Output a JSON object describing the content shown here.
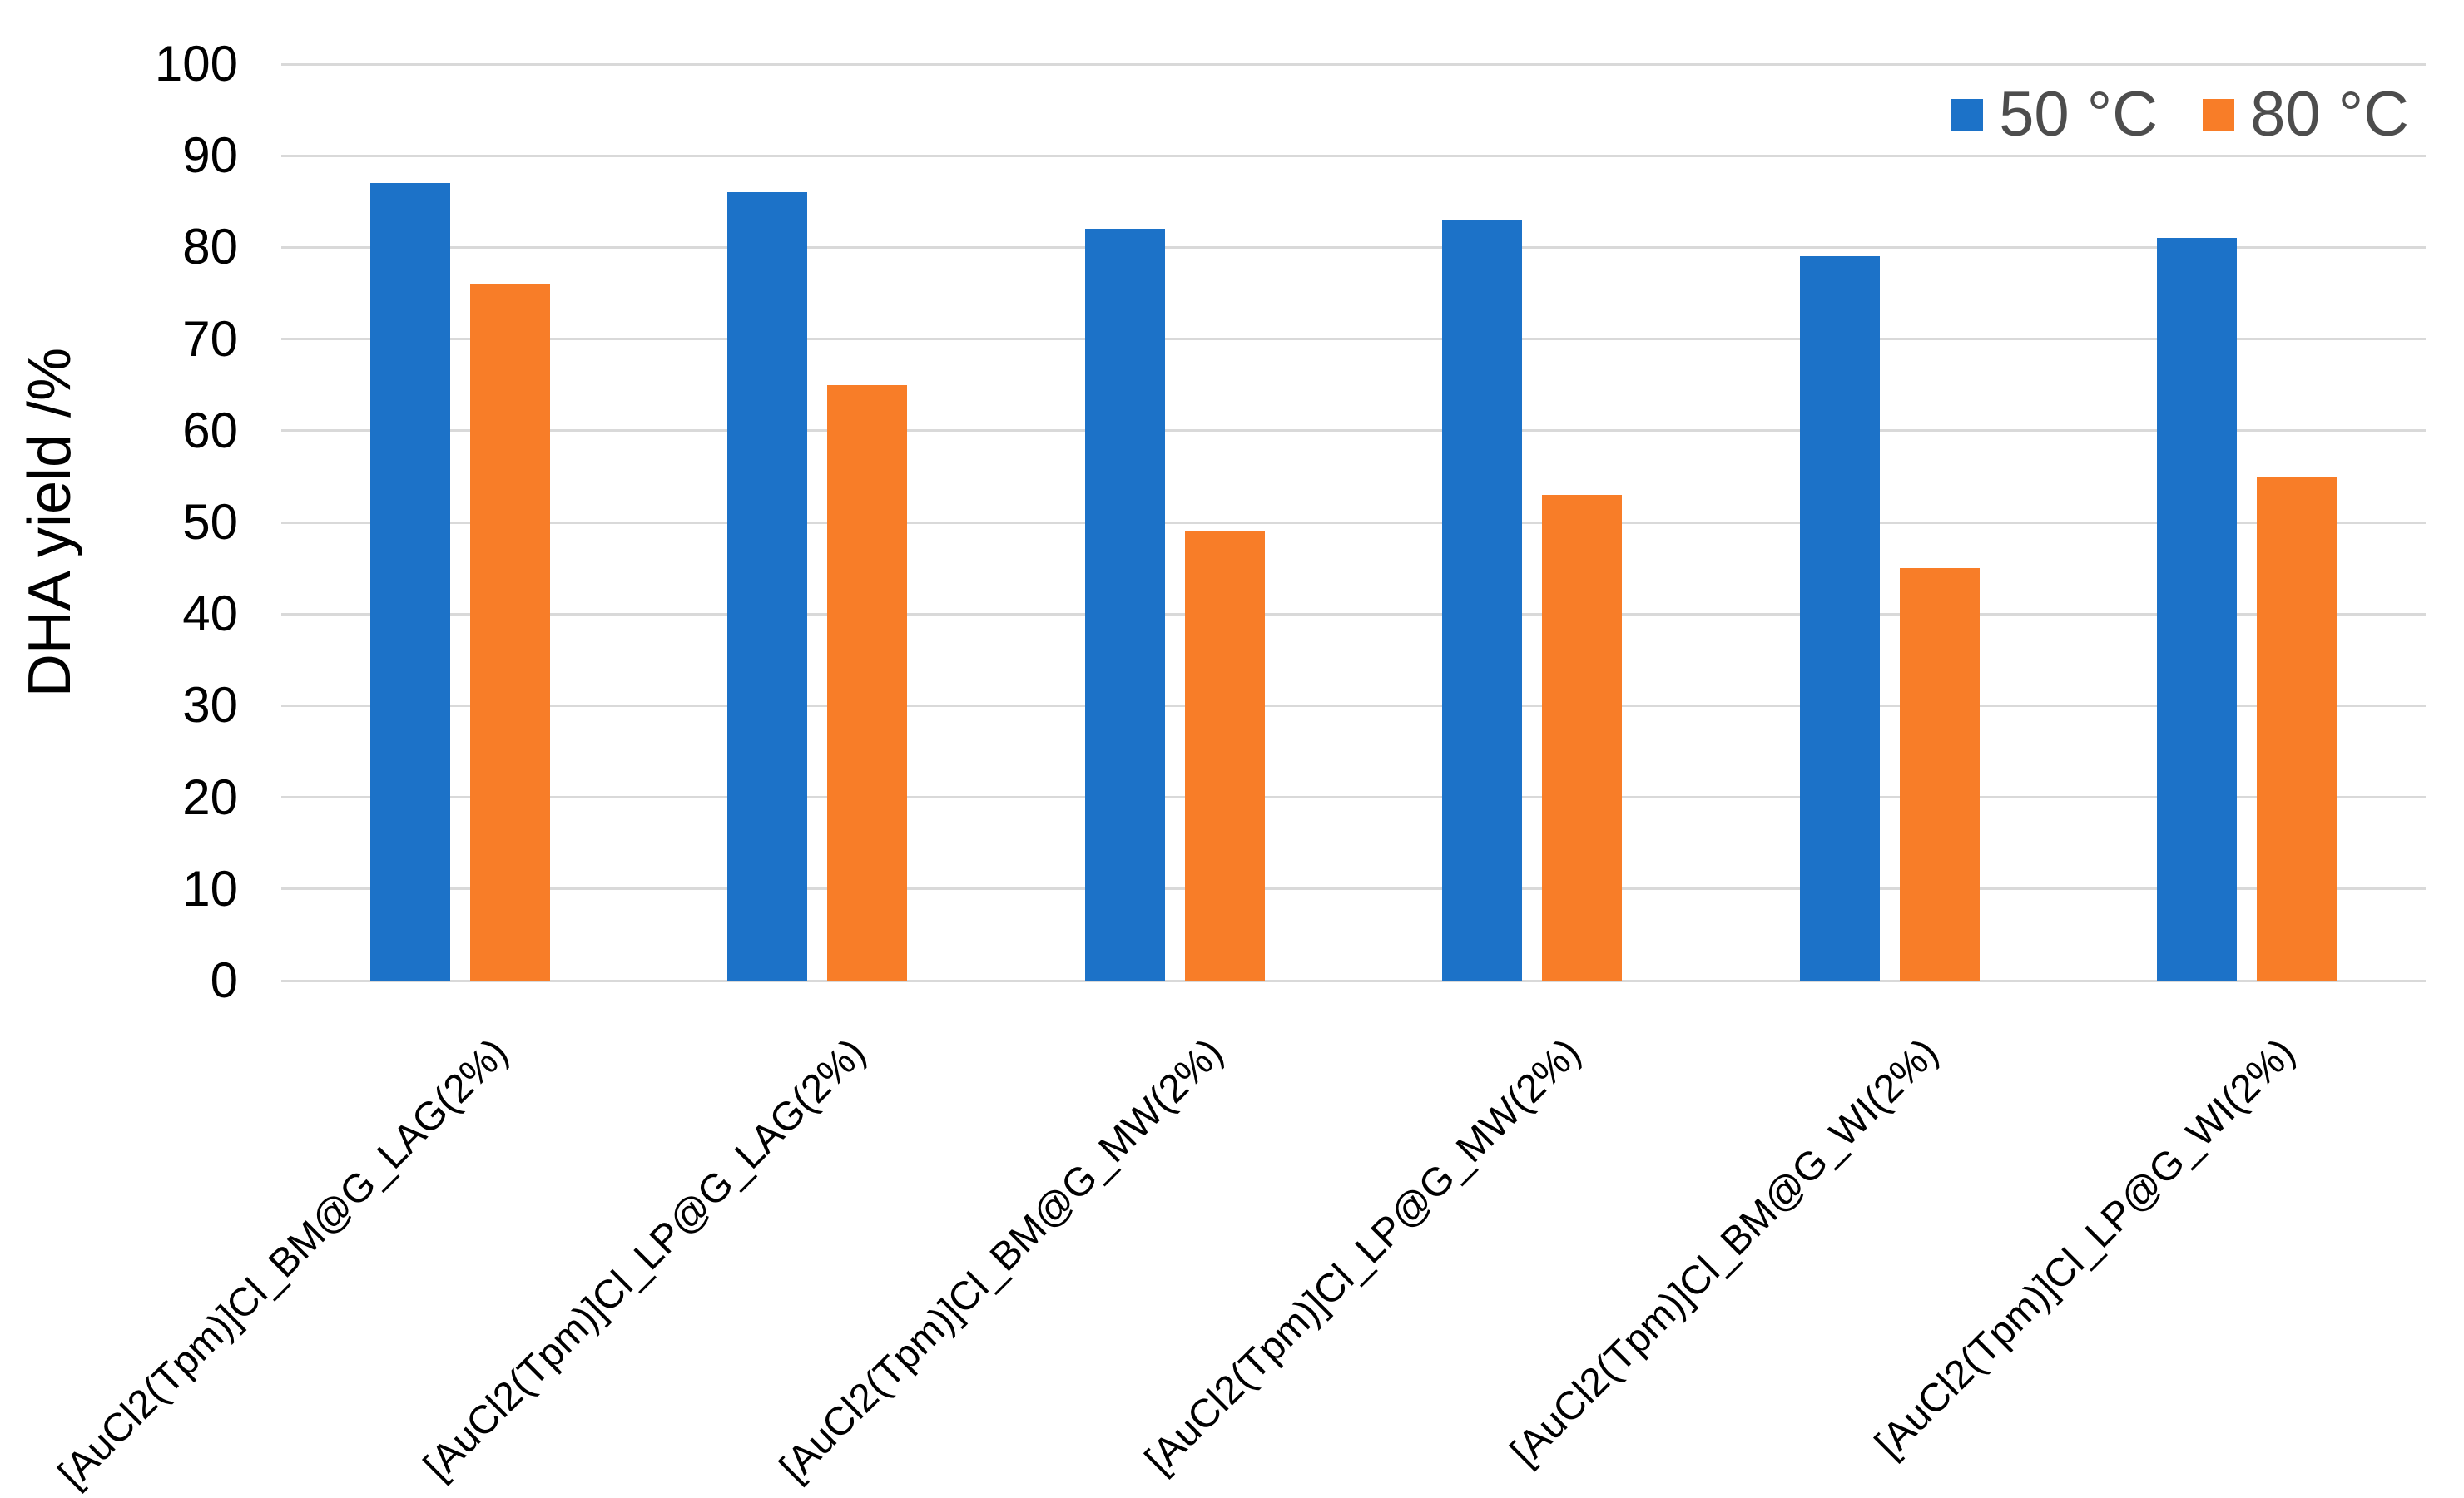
{
  "chart_data": {
    "type": "bar",
    "title": "",
    "xlabel": "",
    "ylabel": "DHA yield /%",
    "ylim": [
      0,
      100
    ],
    "yticks": [
      0,
      10,
      20,
      30,
      40,
      50,
      60,
      70,
      80,
      90,
      100
    ],
    "grid": true,
    "legend_position": "top-right",
    "categories": [
      "[AuCl2(Tpm)]Cl_BM@G_LAG(2%)",
      "[AuCl2(Tpm)]Cl_LP@G_LAG(2%)",
      "[AuCl2(Tpm)]Cl_BM@G_MW(2%)",
      "[AuCl2(Tpm)]Cl_LP@G_MW(2%)",
      "[AuCl2(Tpm)]Cl_BM@G_WI(2%)",
      "[AuCl2(Tpm)]Cl_LP@G_WI(2%)"
    ],
    "series": [
      {
        "name": "50 °C",
        "color": "#1C72C8",
        "values": [
          87,
          86,
          82,
          83,
          79,
          81
        ]
      },
      {
        "name": "80 °C",
        "color": "#F87D28",
        "values": [
          76,
          65,
          49,
          53,
          45,
          55
        ]
      }
    ],
    "colors": {
      "background": "#FFFFFF",
      "gridline": "#D9D9D9",
      "axis_text": "#000000",
      "legend_text": "#4D4D4D"
    }
  }
}
